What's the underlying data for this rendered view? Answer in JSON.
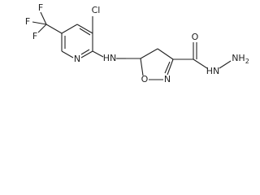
{
  "nodes": [
    {
      "label": "F"
    },
    {
      "label": "F"
    },
    {
      "label": "F"
    },
    {
      "label": "Cl"
    },
    {
      "label": "N"
    },
    {
      "label": "HN"
    },
    {
      "label": "O"
    },
    {
      "label": "N"
    },
    {
      "label": "O"
    },
    {
      "label": "HN"
    },
    {
      "label": "NH",
      "subscript": "2"
    }
  ]
}
